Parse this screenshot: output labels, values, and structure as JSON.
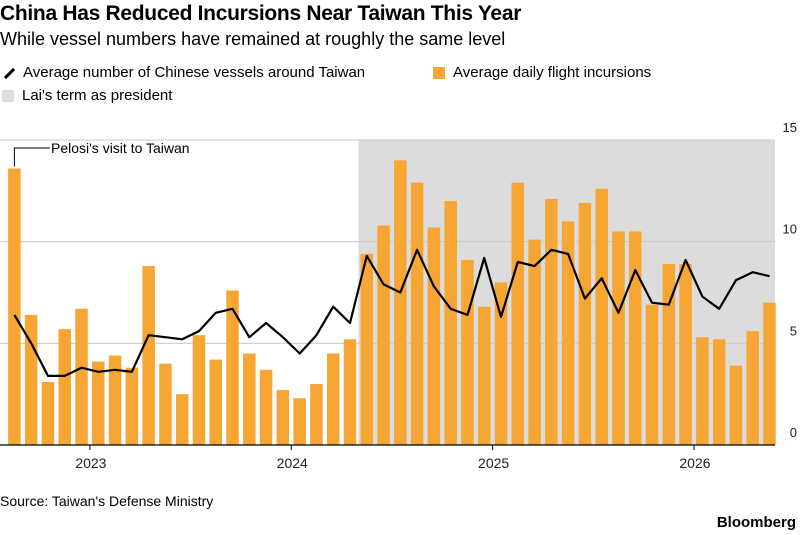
{
  "title": "China Has Reduced Incursions Near Taiwan This Year",
  "subtitle": "While vessel numbers have remained at roughly the same level",
  "legend": {
    "line": "Average number of Chinese vessels around Taiwan",
    "bars": "Average daily flight incursions",
    "shade": "Lai's term as president"
  },
  "source": "Source: Taiwan's Defense Ministry",
  "brand": "Bloomberg",
  "colors": {
    "bars": "#f7a533",
    "line": "#000000",
    "shade": "#dcdcdc",
    "grid": "#c8c8c8"
  },
  "chart_data": {
    "type": "bar",
    "title": "China Has Reduced Incursions Near Taiwan This Year",
    "ylim": [
      0,
      15
    ],
    "yticks": [
      0,
      5,
      10,
      15
    ],
    "xtick_labels": [
      "2023",
      "2024",
      "2025",
      "2026"
    ],
    "xtick_months": [
      "2023-01",
      "2024-01",
      "2025-01",
      "2026-01"
    ],
    "months": [
      "2022-08",
      "2022-09",
      "2022-10",
      "2022-11",
      "2022-12",
      "2023-01",
      "2023-02",
      "2023-03",
      "2023-04",
      "2023-05",
      "2023-06",
      "2023-07",
      "2023-08",
      "2023-09",
      "2023-10",
      "2023-11",
      "2023-12",
      "2024-01",
      "2024-02",
      "2024-03",
      "2024-04",
      "2024-05",
      "2024-06",
      "2024-07",
      "2024-08",
      "2024-09",
      "2024-10",
      "2024-11",
      "2024-12",
      "2025-01",
      "2025-02",
      "2025-03",
      "2025-04",
      "2025-05",
      "2025-06",
      "2025-07",
      "2025-08",
      "2025-09",
      "2025-10",
      "2025-11",
      "2025-12",
      "2026-01",
      "2026-02",
      "2026-03",
      "2026-04",
      "2026-05"
    ],
    "series": [
      {
        "name": "Average daily flight incursions",
        "type": "bar",
        "values": [
          13.6,
          6.4,
          3.1,
          5.7,
          6.7,
          4.1,
          4.4,
          3.8,
          8.8,
          4.0,
          2.5,
          5.4,
          4.2,
          7.6,
          4.5,
          3.7,
          2.7,
          2.3,
          3.0,
          4.5,
          5.2,
          9.4,
          10.8,
          14.0,
          12.9,
          10.7,
          12.0,
          9.1,
          6.8,
          8.0,
          12.9,
          10.1,
          12.1,
          11.0,
          11.9,
          12.6,
          10.5,
          10.5,
          6.9,
          8.9,
          8.9,
          5.3,
          5.2,
          3.9,
          5.6,
          7.0
        ]
      },
      {
        "name": "Average number of Chinese vessels around Taiwan",
        "type": "line",
        "values": [
          6.4,
          5.0,
          3.4,
          3.4,
          3.8,
          3.6,
          3.7,
          3.6,
          5.4,
          5.3,
          5.2,
          5.6,
          6.5,
          6.7,
          5.3,
          6.0,
          5.3,
          4.5,
          5.4,
          6.8,
          6.0,
          9.3,
          7.9,
          7.5,
          9.6,
          7.8,
          6.7,
          6.4,
          9.2,
          6.3,
          9.0,
          8.8,
          9.6,
          9.4,
          7.2,
          8.2,
          6.5,
          8.6,
          7.0,
          6.9,
          9.1,
          7.3,
          6.7,
          8.1,
          8.5,
          8.3
        ]
      }
    ],
    "shaded_period": {
      "label": "Lai's term as president",
      "start": "2024-05",
      "end": "2026-05"
    },
    "annotations": [
      {
        "text": "Pelosi's visit to Taiwan",
        "month": "2022-08"
      }
    ]
  }
}
